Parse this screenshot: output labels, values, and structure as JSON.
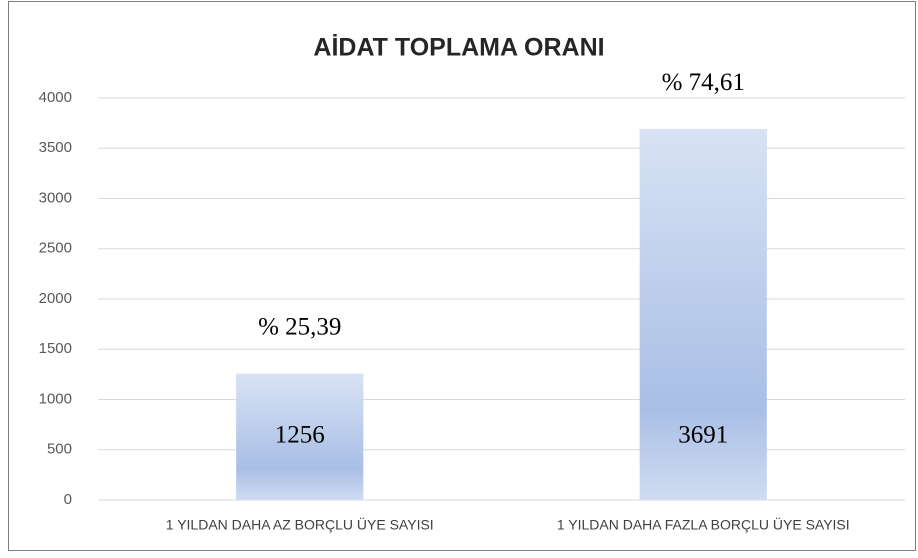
{
  "chart_data": {
    "type": "bar",
    "title": "AİDAT TOPLAMA ORANI",
    "categories": [
      "1 YILDAN DAHA AZ BORÇLU ÜYE SAYISI",
      "1 YILDAN DAHA FAZLA BORÇLU ÜYE SAYISI"
    ],
    "values": [
      1256,
      3691
    ],
    "color": "#a9bfe6",
    "annotations": [
      "% 25,39",
      "% 74,61"
    ],
    "ylim": [
      0,
      4000
    ],
    "yticks": [
      0,
      500,
      1000,
      1500,
      2000,
      2500,
      3000,
      3500,
      4000
    ],
    "grid": true
  }
}
